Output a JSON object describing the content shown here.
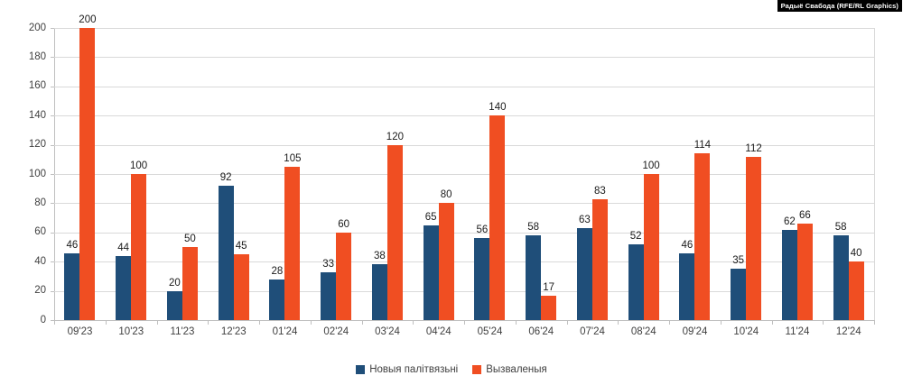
{
  "attribution": {
    "text": "Радыё Свабода (RFE/RL Graphics)"
  },
  "chart_data": {
    "type": "bar",
    "title": "",
    "xlabel": "",
    "ylabel": "",
    "ylim": [
      0,
      200
    ],
    "y_tick_step": 20,
    "y_ticks": [
      0,
      20,
      40,
      60,
      80,
      100,
      120,
      140,
      160,
      180,
      200
    ],
    "grid": true,
    "legend_position": "bottom-center",
    "categories": [
      "09'23",
      "10'23",
      "11'23",
      "12'23",
      "01'24",
      "02'24",
      "03'24",
      "04'24",
      "05'24",
      "06'24",
      "07'24",
      "08'24",
      "09'24",
      "10'24",
      "11'24",
      "12'24"
    ],
    "series": [
      {
        "name": "Новыя палітвязьні",
        "color": "#1f4e79",
        "values": [
          46,
          44,
          20,
          92,
          28,
          33,
          38,
          65,
          56,
          58,
          63,
          52,
          46,
          35,
          62,
          58
        ]
      },
      {
        "name": "Вызваленыя",
        "color": "#f04e22",
        "values": [
          200,
          100,
          50,
          45,
          105,
          60,
          120,
          80,
          140,
          17,
          83,
          100,
          114,
          112,
          66,
          40
        ]
      }
    ]
  }
}
